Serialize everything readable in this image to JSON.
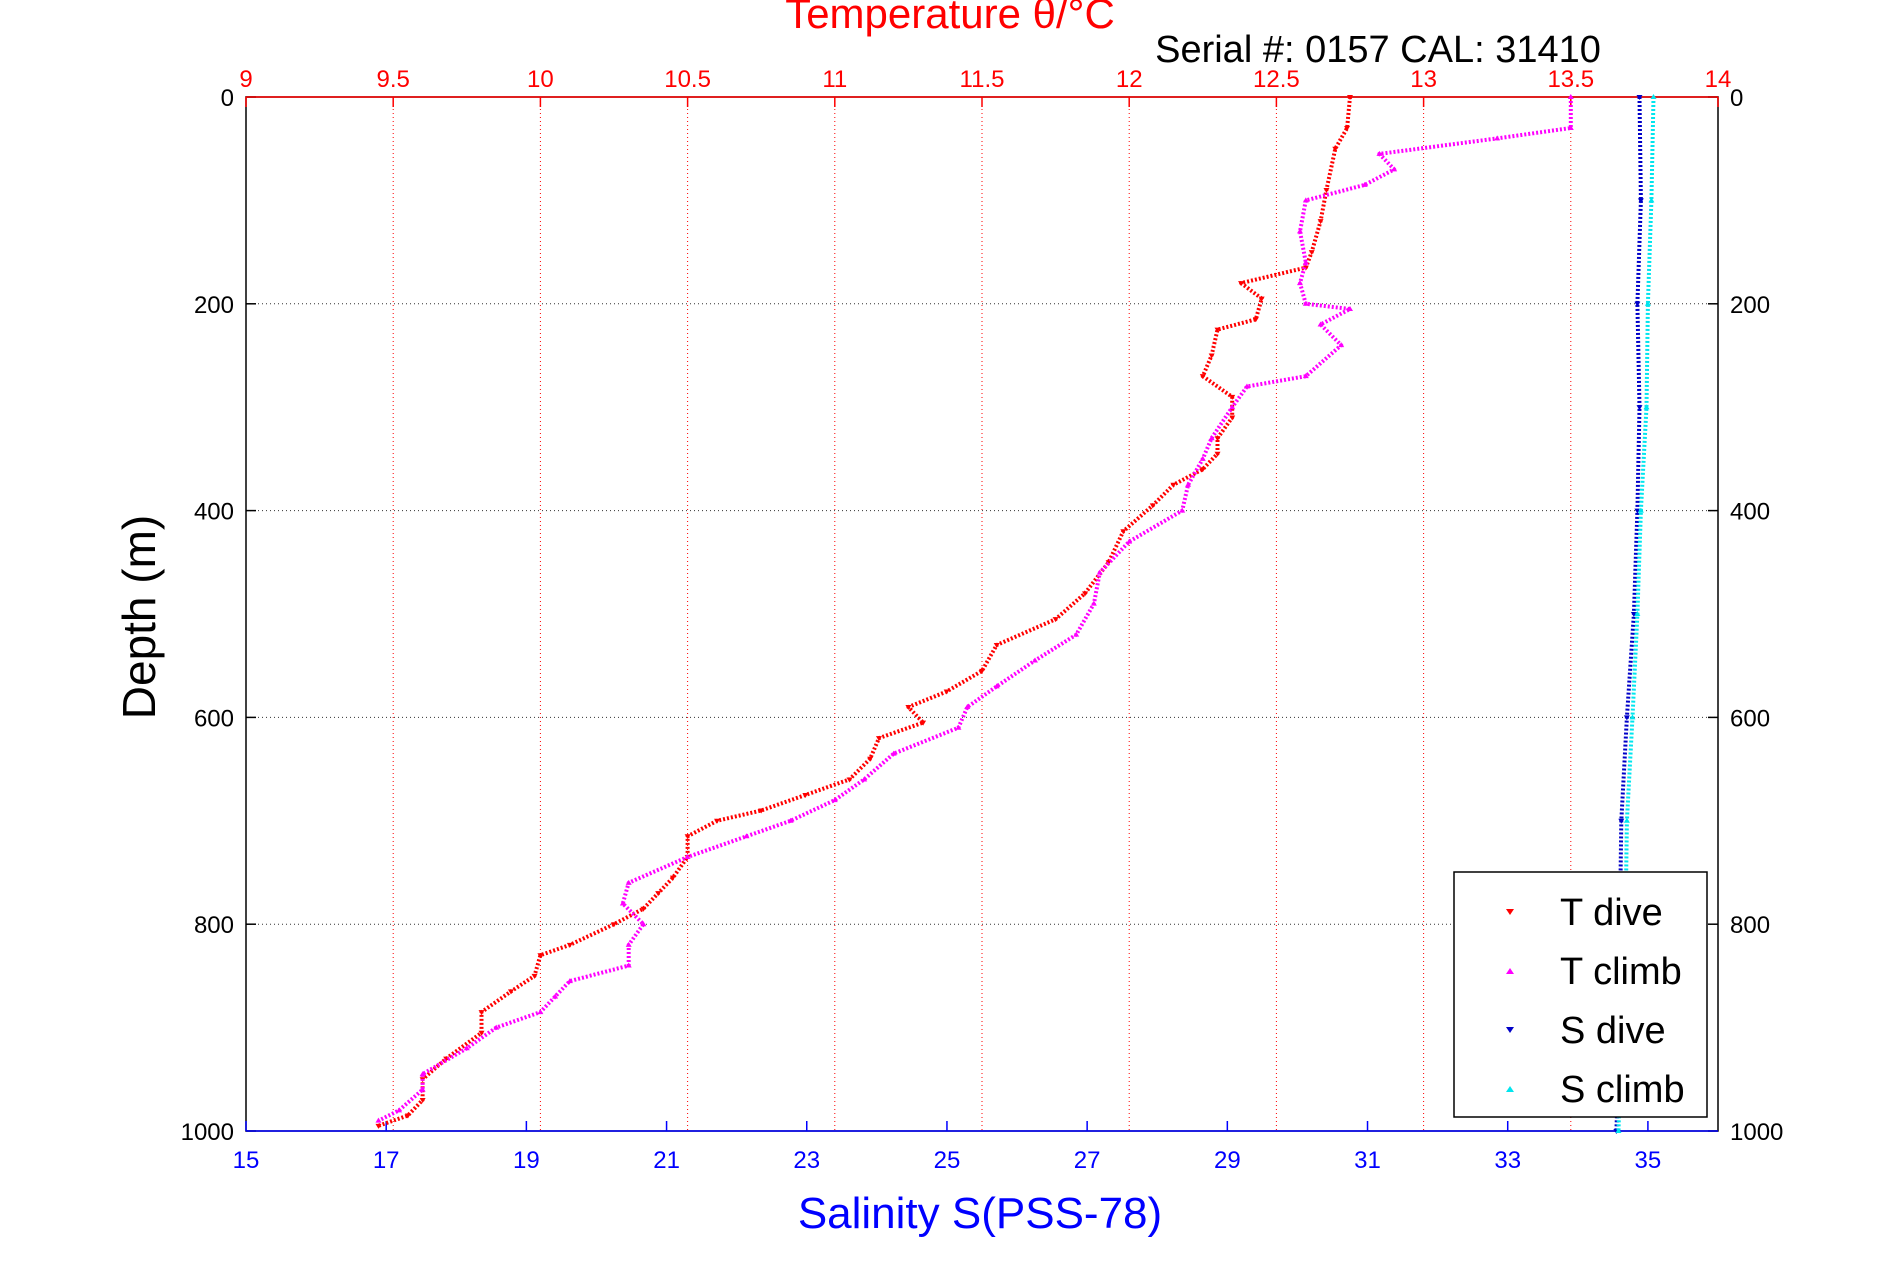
{
  "chart_data": {
    "type": "scatter",
    "title": "Temperature θ/°C",
    "subtitle": "Serial #: 0157  CAL: 31410",
    "ylabel": "Depth (m)",
    "xlabel_bottom": "Salinity S(PSS-78)",
    "ylim": [
      0,
      1000
    ],
    "y_reversed": true,
    "y_ticks": [
      "0",
      "200",
      "400",
      "600",
      "800",
      "1000"
    ],
    "top_axis": {
      "lim": [
        9,
        14
      ],
      "ticks": [
        "9",
        "9.5",
        "10",
        "10.5",
        "11",
        "11.5",
        "12",
        "12.5",
        "13",
        "13.5",
        "14"
      ]
    },
    "bottom_axis": {
      "lim": [
        15,
        36
      ],
      "ticks": [
        "15",
        "17",
        "19",
        "21",
        "23",
        "25",
        "27",
        "29",
        "31",
        "33",
        "35"
      ]
    },
    "grid": true,
    "legend_position": "bottom-right",
    "colors": {
      "temperature": "#ff0000",
      "salinity": "#0000ff",
      "t_dive": "#ff0000",
      "t_climb": "#ff00ff",
      "s_dive": "#0000c8",
      "s_climb": "#00e5ee"
    },
    "series": [
      {
        "name": "T dive",
        "axis": "temperature",
        "color": "#ff0000",
        "marker": "triangle-down",
        "points": [
          [
            12.75,
            0
          ],
          [
            12.74,
            30
          ],
          [
            12.7,
            50
          ],
          [
            12.67,
            90
          ],
          [
            12.65,
            120
          ],
          [
            12.62,
            150
          ],
          [
            12.6,
            165
          ],
          [
            12.38,
            180
          ],
          [
            12.45,
            195
          ],
          [
            12.43,
            215
          ],
          [
            12.3,
            225
          ],
          [
            12.28,
            250
          ],
          [
            12.25,
            270
          ],
          [
            12.35,
            290
          ],
          [
            12.35,
            310
          ],
          [
            12.3,
            330
          ],
          [
            12.3,
            345
          ],
          [
            12.25,
            360
          ],
          [
            12.15,
            375
          ],
          [
            12.08,
            395
          ],
          [
            11.98,
            420
          ],
          [
            11.93,
            450
          ],
          [
            11.85,
            480
          ],
          [
            11.75,
            505
          ],
          [
            11.55,
            530
          ],
          [
            11.5,
            555
          ],
          [
            11.38,
            575
          ],
          [
            11.25,
            590
          ],
          [
            11.3,
            605
          ],
          [
            11.15,
            620
          ],
          [
            11.12,
            640
          ],
          [
            11.05,
            660
          ],
          [
            10.9,
            675
          ],
          [
            10.75,
            690
          ],
          [
            10.6,
            700
          ],
          [
            10.5,
            715
          ],
          [
            10.5,
            735
          ],
          [
            10.45,
            755
          ],
          [
            10.4,
            770
          ],
          [
            10.35,
            785
          ],
          [
            10.25,
            800
          ],
          [
            10.1,
            820
          ],
          [
            10.0,
            830
          ],
          [
            9.98,
            850
          ],
          [
            9.9,
            865
          ],
          [
            9.8,
            885
          ],
          [
            9.8,
            905
          ],
          [
            9.68,
            930
          ],
          [
            9.6,
            950
          ],
          [
            9.6,
            970
          ],
          [
            9.55,
            985
          ],
          [
            9.45,
            995
          ]
        ]
      },
      {
        "name": "T climb",
        "axis": "temperature",
        "color": "#ff00ff",
        "marker": "triangle-up",
        "points": [
          [
            13.5,
            0
          ],
          [
            13.5,
            30
          ],
          [
            13.25,
            40
          ],
          [
            12.85,
            55
          ],
          [
            12.9,
            70
          ],
          [
            12.8,
            85
          ],
          [
            12.6,
            100
          ],
          [
            12.58,
            130
          ],
          [
            12.6,
            160
          ],
          [
            12.58,
            180
          ],
          [
            12.6,
            200
          ],
          [
            12.75,
            205
          ],
          [
            12.65,
            220
          ],
          [
            12.72,
            240
          ],
          [
            12.6,
            270
          ],
          [
            12.4,
            280
          ],
          [
            12.35,
            300
          ],
          [
            12.28,
            330
          ],
          [
            12.25,
            350
          ],
          [
            12.2,
            375
          ],
          [
            12.18,
            400
          ],
          [
            12.0,
            430
          ],
          [
            11.9,
            460
          ],
          [
            11.88,
            490
          ],
          [
            11.82,
            520
          ],
          [
            11.68,
            545
          ],
          [
            11.55,
            570
          ],
          [
            11.45,
            590
          ],
          [
            11.42,
            610
          ],
          [
            11.2,
            635
          ],
          [
            11.1,
            660
          ],
          [
            11.0,
            680
          ],
          [
            10.85,
            700
          ],
          [
            10.7,
            715
          ],
          [
            10.5,
            735
          ],
          [
            10.3,
            760
          ],
          [
            10.28,
            780
          ],
          [
            10.35,
            800
          ],
          [
            10.3,
            820
          ],
          [
            10.3,
            840
          ],
          [
            10.1,
            855
          ],
          [
            10.05,
            870
          ],
          [
            10.0,
            885
          ],
          [
            9.85,
            900
          ],
          [
            9.75,
            920
          ],
          [
            9.6,
            945
          ],
          [
            9.6,
            960
          ],
          [
            9.52,
            980
          ],
          [
            9.45,
            990
          ]
        ]
      },
      {
        "name": "S dive",
        "axis": "salinity",
        "color": "#0000c8",
        "marker": "triangle-down",
        "points": [
          [
            34.88,
            0
          ],
          [
            34.9,
            100
          ],
          [
            34.85,
            200
          ],
          [
            34.88,
            300
          ],
          [
            34.85,
            400
          ],
          [
            34.8,
            500
          ],
          [
            34.7,
            600
          ],
          [
            34.62,
            700
          ],
          [
            34.6,
            800
          ],
          [
            34.6,
            900
          ],
          [
            34.55,
            1000
          ]
        ]
      },
      {
        "name": "S climb",
        "axis": "salinity",
        "color": "#00e5ee",
        "marker": "triangle-up",
        "points": [
          [
            35.08,
            0
          ],
          [
            35.05,
            100
          ],
          [
            35.0,
            200
          ],
          [
            34.98,
            300
          ],
          [
            34.9,
            400
          ],
          [
            34.85,
            500
          ],
          [
            34.78,
            600
          ],
          [
            34.7,
            700
          ],
          [
            34.68,
            800
          ],
          [
            34.62,
            900
          ],
          [
            34.58,
            1000
          ]
        ]
      }
    ]
  }
}
